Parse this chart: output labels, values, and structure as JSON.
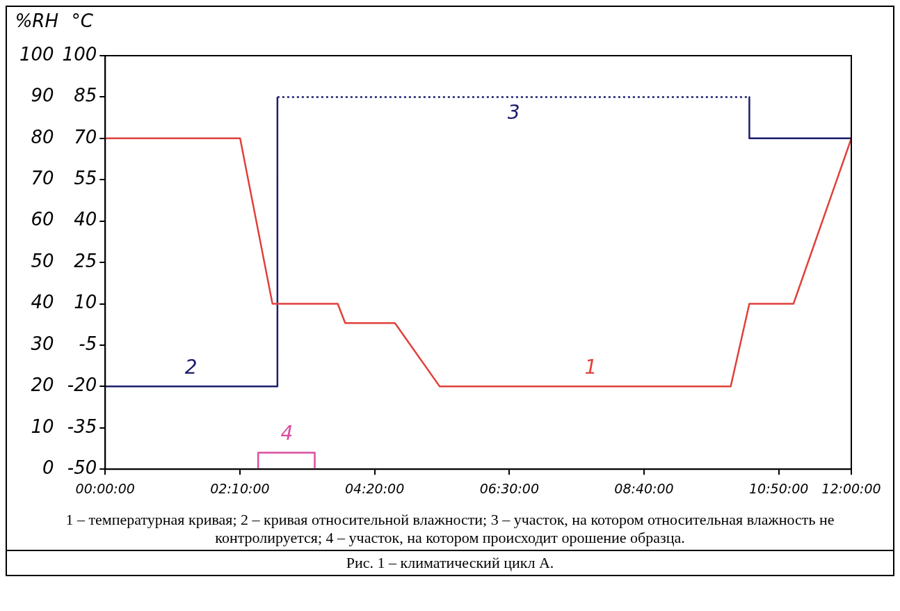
{
  "chart_data": {
    "type": "line",
    "ylabel": "%RH",
    "y2label": "°C",
    "xlim": [
      0,
      12
    ],
    "xticks": [
      {
        "value": 0,
        "label": "00:00:00"
      },
      {
        "value": 2.1667,
        "label": "02:10:00"
      },
      {
        "value": 4.3333,
        "label": "04:20:00"
      },
      {
        "value": 6.5,
        "label": "06:30:00"
      },
      {
        "value": 8.6667,
        "label": "08:40:00"
      },
      {
        "value": 10.8333,
        "label": "10:50:00"
      },
      {
        "value": 12,
        "label": "12:00:00"
      }
    ],
    "ylim": [
      0,
      100
    ],
    "yticks": [
      0,
      10,
      20,
      30,
      40,
      50,
      60,
      70,
      80,
      90,
      100
    ],
    "y2lim": [
      -50,
      100
    ],
    "y2ticks": [
      -50,
      -35,
      -20,
      -5,
      10,
      25,
      40,
      55,
      70,
      85,
      100
    ],
    "series": [
      {
        "color": "#e0403a",
        "axis": "y2",
        "x": [
          0,
          2.17,
          2.69,
          3.74,
          3.86,
          4.66,
          5.38,
          10.06,
          10.36,
          11.07,
          12
        ],
        "values": [
          70,
          70,
          10,
          10,
          3,
          3,
          -20,
          -20,
          10,
          10,
          70
        ]
      },
      {
        "color": "#1c1c6e",
        "axis": "y",
        "line_style": "solid",
        "x": [
          0,
          2.77,
          2.77
        ],
        "values": [
          20,
          20,
          90
        ]
      },
      {
        "color": "#1c1c6e",
        "axis": "y",
        "line_style": "dotted",
        "x": [
          2.77,
          10.36
        ],
        "values": [
          90,
          90
        ]
      },
      {
        "color": "#1c1c6e",
        "axis": "y",
        "line_style": "solid",
        "x": [
          10.36,
          10.36,
          12
        ],
        "values": [
          90,
          80,
          80
        ]
      },
      {
        "color": "#d94fa0",
        "axis": "y",
        "line_style": "solid",
        "x": [
          2.46,
          2.46,
          3.37,
          3.37
        ],
        "values": [
          0,
          4,
          4,
          0
        ]
      }
    ],
    "marker": "none",
    "annotations": [
      {
        "text": "2",
        "x": 1.38,
        "y": 20
      },
      {
        "text": "3",
        "x": 6.57,
        "y": 90
      },
      {
        "text": "1",
        "x": 7.81,
        "y": 20
      },
      {
        "text": "4",
        "x": 2.92,
        "y": 4
      },
      "1 – температурная кривая; 2 – кривая относительной влажности; 3 – участок, на котором относительная влажность не контролируется; 4 – участок, на котором происходит орошение образца.",
      "Рис. 1 – климатический цикл А."
    ]
  }
}
